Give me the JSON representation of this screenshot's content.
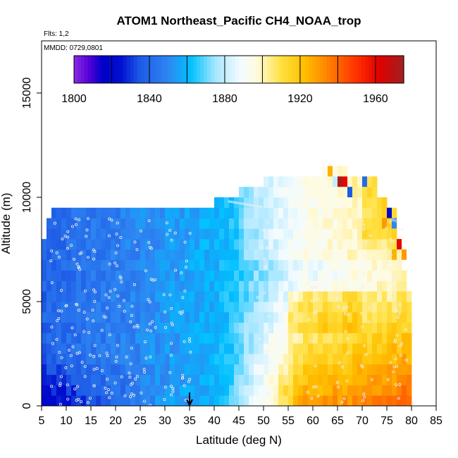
{
  "chart_data": {
    "type": "heatmap",
    "title": "ATOM1 Northeast_Pacific CH4_NOAA_trop",
    "flights_label": "Flts: 1,2",
    "dates_label": "MMDD: 0729,0801",
    "xlabel": "Latitude (deg N)",
    "ylabel": "Altitude (m)",
    "xlim": [
      5,
      85
    ],
    "ylim": [
      0,
      17500
    ],
    "x_ticks": [
      5,
      10,
      15,
      20,
      25,
      30,
      35,
      40,
      45,
      50,
      55,
      60,
      65,
      70,
      75,
      80,
      85
    ],
    "y_ticks": [
      0,
      5000,
      10000,
      15000
    ],
    "colorbar": {
      "range": [
        1800,
        1975
      ],
      "ticks": [
        1800,
        1840,
        1880,
        1920,
        1960
      ],
      "stops": [
        {
          "v": 1800,
          "c": "#8a2be2"
        },
        {
          "v": 1808,
          "c": "#5500d8"
        },
        {
          "v": 1815,
          "c": "#0000c8"
        },
        {
          "v": 1825,
          "c": "#0010d0"
        },
        {
          "v": 1835,
          "c": "#1e5ae6"
        },
        {
          "v": 1850,
          "c": "#2e86f2"
        },
        {
          "v": 1862,
          "c": "#00c0ff"
        },
        {
          "v": 1875,
          "c": "#a6e6ff"
        },
        {
          "v": 1888,
          "c": "#f2fbff"
        },
        {
          "v": 1897,
          "c": "#fffbe0"
        },
        {
          "v": 1910,
          "c": "#ffe040"
        },
        {
          "v": 1922,
          "c": "#ffc000"
        },
        {
          "v": 1935,
          "c": "#ff8000"
        },
        {
          "v": 1950,
          "c": "#ff3000"
        },
        {
          "v": 1962,
          "c": "#e00000"
        },
        {
          "v": 1975,
          "c": "#a02020"
        }
      ]
    },
    "bins": {
      "alt_step": 500,
      "lat_step": 1,
      "columns": [
        {
          "lat": [
            5,
            6
          ],
          "top": 8000
        },
        {
          "lat": [
            6,
            7
          ],
          "top": 9000
        },
        {
          "lat": [
            7,
            35
          ],
          "top": 9500
        },
        {
          "lat": [
            35,
            40
          ],
          "top": 9500
        },
        {
          "lat": [
            40,
            45
          ],
          "top": 10000
        },
        {
          "lat": [
            45,
            50
          ],
          "top": 10500
        },
        {
          "lat": [
            50,
            55
          ],
          "top": 11000
        },
        {
          "lat": [
            55,
            62
          ],
          "top": 11000
        },
        {
          "lat": [
            62,
            67
          ],
          "top": 11500
        },
        {
          "lat": [
            67,
            73
          ],
          "top": 11000
        },
        {
          "lat": [
            73,
            75
          ],
          "top": 10000
        },
        {
          "lat": [
            75,
            77
          ],
          "top": 9500
        },
        {
          "lat": [
            77,
            78
          ],
          "top": 8000
        },
        {
          "lat": [
            78,
            79
          ],
          "top": 6500
        },
        {
          "lat": [
            79,
            80
          ],
          "top": 5500
        }
      ]
    },
    "annotations": [
      {
        "type": "arrow",
        "lat": 35,
        "label": "down-arrow marker"
      }
    ]
  }
}
